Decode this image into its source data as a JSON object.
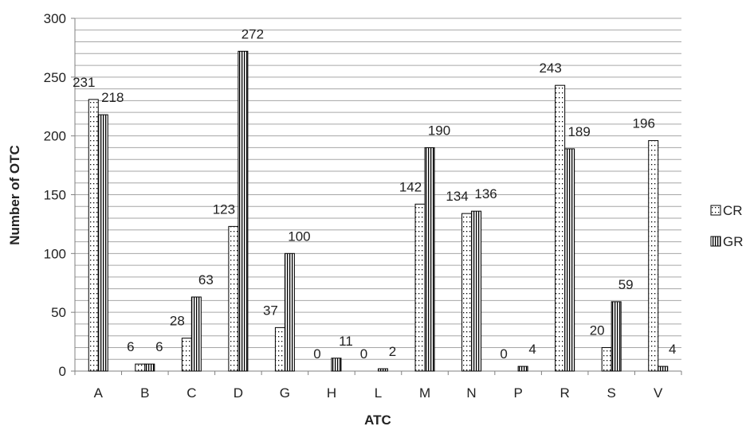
{
  "chart_data": {
    "type": "bar",
    "title": "",
    "xlabel": "ATC",
    "ylabel": "Number of OTC",
    "ylim": [
      0,
      300
    ],
    "yticks": [
      0,
      50,
      100,
      150,
      200,
      250,
      300
    ],
    "minor_gridline_step": 10,
    "grid": true,
    "legend_position": "right",
    "categories": [
      "A",
      "B",
      "C",
      "D",
      "G",
      "H",
      "L",
      "M",
      "N",
      "P",
      "R",
      "S",
      "V"
    ],
    "series": [
      {
        "name": "CR",
        "pattern": "dots",
        "values": [
          231,
          6,
          28,
          123,
          37,
          0,
          0,
          142,
          134,
          0,
          243,
          20,
          196
        ],
        "labels": [
          "231",
          "6",
          "28",
          "123",
          "37",
          "0",
          "0",
          "142",
          "134",
          "0",
          "243",
          "20",
          "196"
        ]
      },
      {
        "name": "GR",
        "pattern": "vertical-stripes",
        "values": [
          218,
          6,
          63,
          272,
          100,
          11,
          2,
          190,
          136,
          4,
          189,
          59,
          4
        ],
        "labels": [
          "218",
          "6",
          "63",
          "272",
          "100",
          "11",
          "2",
          "190",
          "136",
          "4",
          "189",
          "59",
          "4"
        ]
      }
    ]
  },
  "colors": {
    "gridline": "#a6a6a6",
    "axis": "#808080",
    "bar_fill": "#ffffff",
    "bar_outline": "#000000",
    "text": "#222222"
  }
}
